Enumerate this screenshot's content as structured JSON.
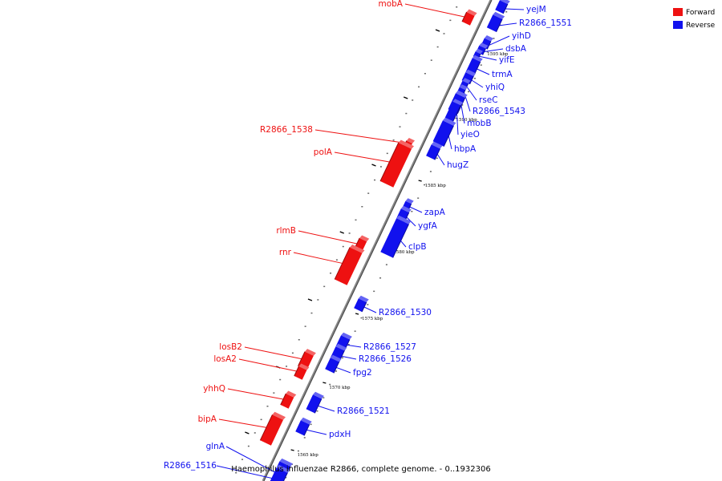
{
  "caption": "Haemophilus influenzae R2866, complete genome. - 0..1932306",
  "colors": {
    "forward": "#ee1111",
    "reverse": "#1111ee"
  },
  "legend": [
    {
      "label": "Forward",
      "strand": "forward"
    },
    {
      "label": "Reverse",
      "strand": "reverse"
    }
  ],
  "ticks": [
    {
      "label": "1565 kbp",
      "kbp": 1565
    },
    {
      "label": "1570 kbp",
      "kbp": 1570
    },
    {
      "label": "1575 kbp",
      "kbp": 1575
    },
    {
      "label": "1580 kbp",
      "kbp": 1580
    },
    {
      "label": "1585 kbp",
      "kbp": 1585
    },
    {
      "label": "1590 kbp",
      "kbp": 1590
    },
    {
      "label": "1595 kbp",
      "kbp": 1595
    }
  ],
  "genes": [
    {
      "name": "yejM",
      "strand": "reverse"
    },
    {
      "name": "R2866_1551",
      "strand": "reverse"
    },
    {
      "name": "yihD",
      "strand": "reverse"
    },
    {
      "name": "dsbA",
      "strand": "reverse"
    },
    {
      "name": "yifE",
      "strand": "reverse"
    },
    {
      "name": "trmA",
      "strand": "reverse"
    },
    {
      "name": "yhiQ",
      "strand": "reverse"
    },
    {
      "name": "rseC",
      "strand": "reverse"
    },
    {
      "name": "R2866_1543",
      "strand": "reverse"
    },
    {
      "name": "mobB",
      "strand": "reverse"
    },
    {
      "name": "yieO",
      "strand": "reverse"
    },
    {
      "name": "hbpA",
      "strand": "reverse"
    },
    {
      "name": "hugZ",
      "strand": "reverse"
    },
    {
      "name": "zapA",
      "strand": "reverse"
    },
    {
      "name": "ygfA",
      "strand": "reverse"
    },
    {
      "name": "clpB",
      "strand": "reverse"
    },
    {
      "name": "R2866_1530",
      "strand": "reverse"
    },
    {
      "name": "R2866_1527",
      "strand": "reverse"
    },
    {
      "name": "R2866_1526",
      "strand": "reverse"
    },
    {
      "name": "fpg2",
      "strand": "reverse"
    },
    {
      "name": "R2866_1521",
      "strand": "reverse"
    },
    {
      "name": "pdxH",
      "strand": "reverse"
    },
    {
      "name": "glnA",
      "strand": "reverse"
    },
    {
      "name": "R2866_1516",
      "strand": "reverse"
    },
    {
      "name": "mobA",
      "strand": "forward"
    },
    {
      "name": "R2866_1538",
      "strand": "forward"
    },
    {
      "name": "polA",
      "strand": "forward"
    },
    {
      "name": "rlmB",
      "strand": "forward"
    },
    {
      "name": "rnr",
      "strand": "forward"
    },
    {
      "name": "losB2",
      "strand": "forward"
    },
    {
      "name": "losA2",
      "strand": "forward"
    },
    {
      "name": "yhhQ",
      "strand": "forward"
    },
    {
      "name": "bipA",
      "strand": "forward"
    }
  ]
}
